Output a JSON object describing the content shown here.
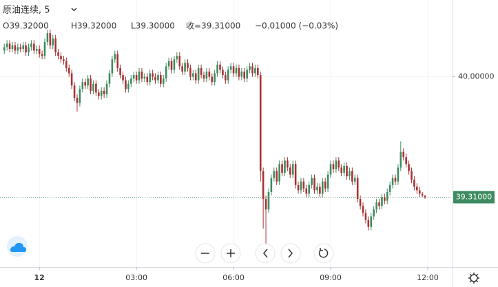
{
  "chart_data": {
    "type": "candlestick",
    "title": "原油连续, 5",
    "ohlc_legend": {
      "open": "O39.32000",
      "high": "H39.32000",
      "low": "L39.30000",
      "close": "收=39.31000",
      "change": "−0.01000 (−0.03%)"
    },
    "up_color": "#3d8b5f",
    "down_color": "#a83232",
    "last_price": {
      "value": 39.31,
      "label": "39.31000"
    },
    "xlim": [
      -73,
      766
    ],
    "ylim": [
      38.91,
      40.44
    ],
    "xticks": [
      {
        "value": 0,
        "label": "12"
      },
      {
        "value": 180,
        "label": "03:00"
      },
      {
        "value": 360,
        "label": "06:00"
      },
      {
        "value": 540,
        "label": "09:00"
      },
      {
        "value": 720,
        "label": "12:00"
      }
    ],
    "yticks": [
      {
        "value": 40,
        "label": "40.00000"
      }
    ],
    "grid": true,
    "x": [
      -65,
      -60,
      -55,
      -50,
      -45,
      -40,
      -35,
      -30,
      -25,
      -20,
      -15,
      -10,
      -5,
      0,
      5,
      10,
      15,
      20,
      25,
      30,
      35,
      40,
      45,
      50,
      55,
      60,
      65,
      70,
      75,
      80,
      85,
      90,
      95,
      100,
      105,
      110,
      115,
      120,
      125,
      130,
      135,
      140,
      145,
      150,
      155,
      160,
      165,
      170,
      175,
      180,
      185,
      190,
      195,
      200,
      205,
      210,
      215,
      220,
      225,
      230,
      235,
      240,
      245,
      250,
      255,
      260,
      265,
      270,
      275,
      280,
      285,
      290,
      295,
      300,
      305,
      310,
      315,
      320,
      325,
      330,
      335,
      340,
      345,
      350,
      355,
      360,
      365,
      370,
      375,
      380,
      385,
      390,
      395,
      400,
      405,
      410,
      415,
      420,
      425,
      430,
      435,
      440,
      445,
      450,
      455,
      460,
      465,
      470,
      475,
      480,
      485,
      490,
      495,
      500,
      505,
      510,
      515,
      520,
      525,
      530,
      535,
      540,
      545,
      550,
      555,
      560,
      565,
      570,
      575,
      580,
      585,
      590,
      595,
      600,
      605,
      610,
      615,
      620,
      625,
      630,
      635,
      640,
      645,
      650,
      655,
      660,
      665,
      670,
      675,
      680,
      685,
      690,
      695,
      700,
      705,
      710,
      715
    ],
    "open": [
      40.15,
      40.17,
      40.19,
      40.16,
      40.18,
      40.15,
      40.17,
      40.16,
      40.18,
      40.14,
      40.17,
      40.19,
      40.15,
      40.16,
      40.13,
      40.12,
      40.2,
      40.25,
      40.18,
      40.22,
      40.14,
      40.12,
      40.1,
      40.09,
      40.05,
      40.02,
      39.95,
      39.88,
      39.85,
      39.93,
      39.97,
      39.95,
      39.99,
      39.92,
      39.96,
      39.91,
      39.89,
      39.92,
      39.9,
      39.96,
      40.02,
      40.1,
      40.13,
      40.05,
      40.01,
      39.98,
      39.93,
      39.96,
      39.99,
      40.01,
      39.98,
      40.03,
      39.99,
      40.0,
      39.97,
      40.02,
      40.0,
      39.98,
      40.01,
      39.96,
      39.99,
      40.06,
      40.09,
      40.04,
      40.1,
      40.12,
      40.06,
      40.03,
      40.08,
      40.05,
      40.0,
      40.02,
      39.98,
      40.05,
      40.01,
      39.99,
      40.03,
      40.0,
      39.97,
      40.02,
      40.07,
      40.04,
      40.01,
      39.98,
      40.04,
      40.06,
      40.02,
      40.05,
      40.0,
      40.03,
      39.99,
      40.04,
      40.06,
      40.02,
      40.05,
      40.01,
      39.46,
      39.3,
      39.24,
      39.34,
      39.42,
      39.46,
      39.4,
      39.5,
      39.45,
      39.52,
      39.48,
      39.44,
      39.5,
      39.38,
      39.35,
      39.4,
      39.36,
      39.33,
      39.38,
      39.42,
      39.35,
      39.37,
      39.33,
      39.4,
      39.36,
      39.44,
      39.5,
      39.47,
      39.52,
      39.48,
      39.45,
      39.49,
      39.43,
      39.46,
      39.4,
      39.42,
      39.3,
      39.26,
      39.22,
      39.18,
      39.14,
      39.2,
      39.24,
      39.28,
      39.26,
      39.31,
      39.29,
      39.34,
      39.38,
      39.42,
      39.4,
      39.48,
      39.57,
      39.54,
      39.5,
      39.46,
      39.41,
      39.37,
      39.35,
      39.33,
      39.32
    ],
    "high": [
      40.19,
      40.21,
      40.21,
      40.2,
      40.2,
      40.19,
      40.19,
      40.2,
      40.2,
      40.19,
      40.21,
      40.21,
      40.18,
      40.18,
      40.15,
      40.22,
      40.27,
      40.27,
      40.24,
      40.24,
      40.16,
      40.14,
      40.12,
      40.11,
      40.07,
      40.04,
      39.97,
      39.9,
      39.95,
      39.99,
      39.99,
      40.01,
      40.01,
      39.98,
      39.98,
      39.93,
      39.94,
      39.94,
      39.98,
      40.04,
      40.12,
      40.15,
      40.15,
      40.07,
      40.03,
      40.0,
      39.98,
      40.01,
      40.03,
      40.03,
      40.05,
      40.05,
      40.02,
      40.02,
      40.04,
      40.04,
      40.02,
      40.03,
      40.03,
      40.01,
      40.08,
      40.11,
      40.11,
      40.12,
      40.14,
      40.14,
      40.08,
      40.1,
      40.1,
      40.07,
      40.04,
      40.04,
      40.07,
      40.07,
      40.03,
      40.05,
      40.05,
      40.02,
      40.04,
      40.09,
      40.09,
      40.06,
      40.03,
      40.06,
      40.08,
      40.08,
      40.07,
      40.07,
      40.05,
      40.05,
      40.06,
      40.08,
      40.08,
      40.07,
      40.07,
      40.03,
      39.48,
      39.32,
      39.36,
      39.44,
      39.48,
      39.48,
      39.52,
      39.52,
      39.54,
      39.54,
      39.5,
      39.52,
      39.52,
      39.4,
      39.42,
      39.42,
      39.38,
      39.4,
      39.44,
      39.44,
      39.39,
      39.39,
      39.42,
      39.42,
      39.46,
      39.52,
      39.52,
      39.54,
      39.54,
      39.5,
      39.51,
      39.51,
      39.48,
      39.48,
      39.44,
      39.44,
      39.32,
      39.28,
      39.24,
      39.2,
      39.22,
      39.26,
      39.3,
      39.3,
      39.33,
      39.33,
      39.36,
      39.4,
      39.44,
      39.44,
      39.5,
      39.63,
      39.59,
      39.56,
      39.52,
      39.48,
      39.43,
      39.39,
      39.37,
      39.34,
      39.32
    ],
    "low": [
      40.13,
      40.15,
      40.14,
      40.14,
      40.13,
      40.13,
      40.14,
      40.14,
      40.12,
      40.12,
      40.15,
      40.13,
      40.13,
      40.11,
      40.1,
      40.1,
      40.18,
      40.16,
      40.16,
      40.12,
      40.1,
      40.08,
      40.07,
      40.03,
      40.0,
      39.93,
      39.86,
      39.8,
      39.83,
      39.91,
      39.93,
      39.93,
      39.9,
      39.9,
      39.89,
      39.87,
      39.87,
      39.88,
      39.88,
      39.94,
      40.0,
      40.08,
      40.03,
      39.99,
      39.96,
      39.91,
      39.91,
      39.94,
      39.97,
      39.96,
      39.96,
      39.97,
      39.97,
      39.95,
      39.95,
      39.98,
      39.96,
      39.96,
      39.94,
      39.94,
      39.97,
      40.04,
      40.02,
      40.02,
      40.08,
      40.04,
      40.01,
      40.01,
      40.03,
      39.98,
      39.98,
      39.96,
      39.96,
      39.99,
      39.97,
      39.97,
      39.98,
      39.95,
      39.95,
      40.0,
      40.02,
      39.99,
      39.96,
      39.96,
      40.02,
      40.0,
      40.0,
      39.98,
      39.98,
      39.97,
      39.97,
      40.02,
      40.0,
      40.0,
      39.99,
      39.4,
      39.13,
      39.04,
      39.22,
      39.32,
      39.4,
      39.38,
      39.38,
      39.43,
      39.43,
      39.46,
      39.42,
      39.42,
      39.36,
      39.33,
      39.33,
      39.34,
      39.31,
      39.31,
      39.36,
      39.33,
      39.33,
      39.31,
      39.31,
      39.34,
      39.34,
      39.42,
      39.45,
      39.45,
      39.46,
      39.43,
      39.43,
      39.41,
      39.41,
      39.38,
      39.38,
      39.28,
      39.24,
      39.2,
      39.16,
      39.12,
      39.12,
      39.18,
      39.22,
      39.24,
      39.24,
      39.27,
      39.27,
      39.32,
      39.36,
      39.38,
      39.38,
      39.46,
      39.52,
      39.48,
      39.44,
      39.39,
      39.35,
      39.33,
      39.31,
      39.31,
      39.3
    ],
    "close": [
      40.17,
      40.19,
      40.16,
      40.18,
      40.15,
      40.17,
      40.16,
      40.18,
      40.14,
      40.17,
      40.19,
      40.15,
      40.16,
      40.13,
      40.12,
      40.2,
      40.25,
      40.18,
      40.22,
      40.14,
      40.12,
      40.1,
      40.09,
      40.05,
      40.02,
      39.95,
      39.88,
      39.85,
      39.93,
      39.97,
      39.95,
      39.99,
      39.92,
      39.96,
      39.91,
      39.89,
      39.92,
      39.9,
      39.96,
      40.02,
      40.1,
      40.13,
      40.05,
      40.01,
      39.98,
      39.93,
      39.96,
      39.99,
      40.01,
      39.98,
      40.03,
      39.99,
      40.0,
      39.97,
      40.02,
      40.0,
      39.98,
      40.01,
      39.96,
      39.99,
      40.06,
      40.09,
      40.04,
      40.1,
      40.12,
      40.06,
      40.03,
      40.08,
      40.05,
      40.0,
      40.02,
      39.98,
      40.05,
      40.01,
      39.99,
      40.03,
      40.0,
      39.97,
      40.02,
      40.07,
      40.04,
      40.01,
      39.98,
      40.04,
      40.06,
      40.02,
      40.05,
      40.0,
      40.03,
      39.99,
      40.04,
      40.06,
      40.02,
      40.05,
      40.01,
      39.46,
      39.3,
      39.24,
      39.34,
      39.42,
      39.46,
      39.4,
      39.5,
      39.45,
      39.52,
      39.48,
      39.44,
      39.5,
      39.38,
      39.35,
      39.4,
      39.36,
      39.33,
      39.38,
      39.42,
      39.35,
      39.37,
      39.33,
      39.4,
      39.36,
      39.44,
      39.5,
      39.47,
      39.52,
      39.48,
      39.45,
      39.49,
      39.43,
      39.46,
      39.4,
      39.42,
      39.3,
      39.26,
      39.22,
      39.18,
      39.14,
      39.2,
      39.24,
      39.28,
      39.26,
      39.31,
      39.29,
      39.34,
      39.38,
      39.42,
      39.4,
      39.48,
      39.57,
      39.54,
      39.5,
      39.46,
      39.41,
      39.37,
      39.35,
      39.33,
      39.32,
      39.31
    ]
  }
}
